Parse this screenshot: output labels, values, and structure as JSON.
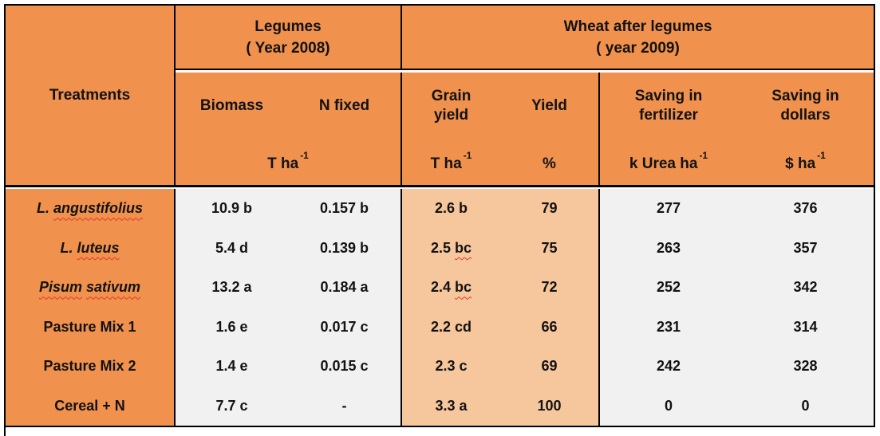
{
  "table": {
    "treatments_header": "Treatments",
    "groups": {
      "legumes": {
        "line1": "Legumes",
        "line2": "( Year 2008)"
      },
      "wheat": {
        "line1": "Wheat after legumes",
        "line2": "( year 2009)"
      }
    },
    "subheaders": {
      "biomass": "Biomass",
      "n_fixed": "N fixed",
      "grain_line1": "Grain",
      "grain_line2": "yield",
      "yield": "Yield",
      "saving_fert_line1": "Saving in",
      "saving_fert_line2": "fertilizer",
      "saving_dollars_line1": "Saving in",
      "saving_dollars_line2": "dollars"
    },
    "units": {
      "legumes_base": "T ha",
      "legumes_sup": "-1",
      "grain_base": "T ha",
      "grain_sup": "-1",
      "yield_pct": "%",
      "fert_base": "k Urea ha",
      "fert_sup": "-1",
      "dollars_base": "$ ha",
      "dollars_sup": "-1"
    },
    "colors": {
      "header_orange": "#F0914D",
      "peach": "#F6C69C",
      "light_gray": "#F1F1F1",
      "border_black": "#000000",
      "squiggle_red": "#E0382B"
    },
    "rows": [
      {
        "treatment": [
          {
            "t": "L. "
          },
          {
            "t": "angustifolius",
            "wavy": true
          }
        ],
        "italic": true,
        "cells": [
          [
            {
              "t": "10.9 b"
            }
          ],
          [
            {
              "t": "0.157 b"
            }
          ],
          [
            {
              "t": "2.6 b"
            }
          ],
          [
            {
              "t": "79"
            }
          ],
          [
            {
              "t": "277"
            }
          ],
          [
            {
              "t": "376"
            }
          ]
        ]
      },
      {
        "treatment": [
          {
            "t": "L. "
          },
          {
            "t": "luteus",
            "wavy": true
          }
        ],
        "italic": true,
        "cells": [
          [
            {
              "t": "5.4 d"
            }
          ],
          [
            {
              "t": "0.139 b"
            }
          ],
          [
            {
              "t": "2.5 "
            },
            {
              "t": "bc",
              "wavy": true
            }
          ],
          [
            {
              "t": "75"
            }
          ],
          [
            {
              "t": "263"
            }
          ],
          [
            {
              "t": "357"
            }
          ]
        ]
      },
      {
        "treatment": [
          {
            "t": "Pisum",
            "wavy": true
          },
          {
            "t": " "
          },
          {
            "t": "sativum",
            "wavy": true
          }
        ],
        "italic": true,
        "cells": [
          [
            {
              "t": "13.2 a"
            }
          ],
          [
            {
              "t": "0.184 a"
            }
          ],
          [
            {
              "t": "2.4 "
            },
            {
              "t": "bc",
              "wavy": true
            }
          ],
          [
            {
              "t": "72"
            }
          ],
          [
            {
              "t": "252"
            }
          ],
          [
            {
              "t": "342"
            }
          ]
        ]
      },
      {
        "treatment": [
          {
            "t": "Pasture Mix 1"
          }
        ],
        "italic": false,
        "cells": [
          [
            {
              "t": "1.6 e"
            }
          ],
          [
            {
              "t": "0.017 c"
            }
          ],
          [
            {
              "t": "2.2 cd"
            }
          ],
          [
            {
              "t": "66"
            }
          ],
          [
            {
              "t": "231"
            }
          ],
          [
            {
              "t": "314"
            }
          ]
        ]
      },
      {
        "treatment": [
          {
            "t": "Pasture Mix 2"
          }
        ],
        "italic": false,
        "cells": [
          [
            {
              "t": "1.4 e"
            }
          ],
          [
            {
              "t": "0.015 c"
            }
          ],
          [
            {
              "t": "2.3 c"
            }
          ],
          [
            {
              "t": "69"
            }
          ],
          [
            {
              "t": "242"
            }
          ],
          [
            {
              "t": "328"
            }
          ]
        ]
      },
      {
        "treatment": [
          {
            "t": "Cereal + N"
          }
        ],
        "italic": false,
        "cells": [
          [
            {
              "t": "7.7 c"
            }
          ],
          [
            {
              "t": "-"
            }
          ],
          [
            {
              "t": "3.3 a"
            }
          ],
          [
            {
              "t": "100"
            }
          ],
          [
            {
              "t": "0"
            }
          ],
          [
            {
              "t": "0"
            }
          ]
        ]
      }
    ]
  }
}
